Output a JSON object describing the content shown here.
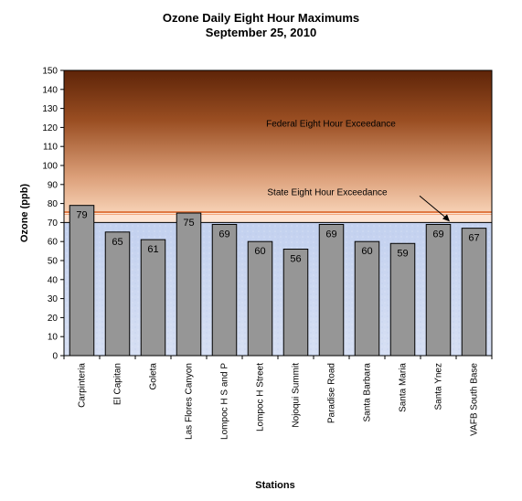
{
  "chart_data": {
    "type": "bar",
    "title": "Ozone Daily Eight Hour Maximums",
    "subtitle": "September 25, 2010",
    "xlabel": "Stations",
    "ylabel": "Ozone (ppb)",
    "ylim": [
      0,
      150
    ],
    "ytick_step": 10,
    "categories": [
      "Carpinteria",
      "El Capitan",
      "Goleta",
      "Las Flores Canyon",
      "Lompoc H S and P",
      "Lompoc H Street",
      "Nojoqui Summit",
      "Paradise Road",
      "Santa Barbara",
      "Santa Maria",
      "Santa Ynez",
      "VAFB South Base"
    ],
    "values": [
      79,
      65,
      61,
      75,
      69,
      60,
      56,
      69,
      60,
      59,
      69,
      67
    ],
    "bar_color": "#969696",
    "thresholds": [
      {
        "label": "Federal Eight Hour Exceedance",
        "value": 75
      },
      {
        "label": "State Eight Hour Exceedance",
        "value": 70
      }
    ],
    "background_colors": {
      "lower": "#c7d4ef",
      "upper_top": "#6b2d10",
      "upper_bottom": "#f5c9a6"
    }
  }
}
